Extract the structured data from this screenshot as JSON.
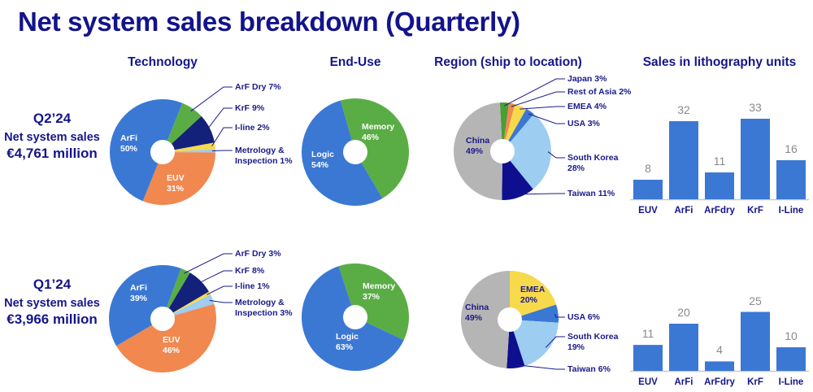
{
  "title": "Net system sales breakdown (Quarterly)",
  "headers": {
    "technology": "Technology",
    "end_use": "End-Use",
    "region": "Region (ship to location)",
    "units": "Sales in lithography units"
  },
  "colors": {
    "title": "#13138c",
    "bar": "#3b78d4",
    "bar_value": "#8a8a8a"
  },
  "quarters": [
    {
      "label": "Q2’24",
      "subtitle": "Net system sales",
      "value": "€4,761 million"
    },
    {
      "label": "Q1’24",
      "subtitle": "Net system sales",
      "value": "€3,966 million"
    }
  ],
  "chart_data": [
    {
      "type": "pie",
      "title": "Technology",
      "quarter": "Q2’24",
      "slices": [
        {
          "name": "ArF Dry",
          "value": 7,
          "color": "#5aad45"
        },
        {
          "name": "KrF",
          "value": 9,
          "color": "#13217a"
        },
        {
          "name": "I-line",
          "value": 2,
          "color": "#f7d94c"
        },
        {
          "name": "Metrology & Inspection",
          "value": 1,
          "color": "#9dcdf0"
        },
        {
          "name": "EUV",
          "value": 31,
          "color": "#f0884f"
        },
        {
          "name": "ArFi",
          "value": 50,
          "color": "#3b78d4"
        }
      ]
    },
    {
      "type": "pie",
      "title": "End-Use",
      "quarter": "Q2’24",
      "slices": [
        {
          "name": "Memory",
          "value": 46,
          "color": "#5aad45"
        },
        {
          "name": "Logic",
          "value": 54,
          "color": "#3b78d4"
        }
      ]
    },
    {
      "type": "pie",
      "title": "Region (ship to location)",
      "quarter": "Q2’24",
      "slices": [
        {
          "name": "Japan",
          "value": 3,
          "color": "#4a9e35"
        },
        {
          "name": "Rest of Asia",
          "value": 2,
          "color": "#f0884f"
        },
        {
          "name": "EMEA",
          "value": 4,
          "color": "#f7d94c"
        },
        {
          "name": "USA",
          "value": 3,
          "color": "#3b78d4"
        },
        {
          "name": "South Korea",
          "value": 28,
          "color": "#9dcdf0"
        },
        {
          "name": "Taiwan",
          "value": 11,
          "color": "#0e0f8f"
        },
        {
          "name": "China",
          "value": 49,
          "color": "#b5b5b5"
        }
      ]
    },
    {
      "type": "bar",
      "title": "Sales in lithography units",
      "quarter": "Q2’24",
      "categories": [
        "EUV",
        "ArFi",
        "ArFdry",
        "KrF",
        "I-Line"
      ],
      "values": [
        8,
        32,
        11,
        33,
        16
      ]
    },
    {
      "type": "pie",
      "title": "Technology",
      "quarter": "Q1’24",
      "slices": [
        {
          "name": "ArF Dry",
          "value": 3,
          "color": "#5aad45"
        },
        {
          "name": "KrF",
          "value": 8,
          "color": "#13217a"
        },
        {
          "name": "I-line",
          "value": 1,
          "color": "#f7d94c"
        },
        {
          "name": "Metrology & Inspection",
          "value": 3,
          "color": "#9dcdf0"
        },
        {
          "name": "EUV",
          "value": 46,
          "color": "#f0884f"
        },
        {
          "name": "ArFi",
          "value": 39,
          "color": "#3b78d4"
        }
      ]
    },
    {
      "type": "pie",
      "title": "End-Use",
      "quarter": "Q1’24",
      "slices": [
        {
          "name": "Memory",
          "value": 37,
          "color": "#5aad45"
        },
        {
          "name": "Logic",
          "value": 63,
          "color": "#3b78d4"
        }
      ]
    },
    {
      "type": "pie",
      "title": "Region (ship to location)",
      "quarter": "Q1’24",
      "slices": [
        {
          "name": "EMEA",
          "value": 20,
          "color": "#f7d94c"
        },
        {
          "name": "USA",
          "value": 6,
          "color": "#3b78d4"
        },
        {
          "name": "South Korea",
          "value": 19,
          "color": "#9dcdf0"
        },
        {
          "name": "Taiwan",
          "value": 6,
          "color": "#0e0f8f"
        },
        {
          "name": "China",
          "value": 49,
          "color": "#b5b5b5"
        }
      ]
    },
    {
      "type": "bar",
      "title": "Sales in lithography units",
      "quarter": "Q1’24",
      "categories": [
        "EUV",
        "ArFi",
        "ArFdry",
        "KrF",
        "I-Line"
      ],
      "values": [
        11,
        20,
        4,
        25,
        10
      ]
    }
  ]
}
